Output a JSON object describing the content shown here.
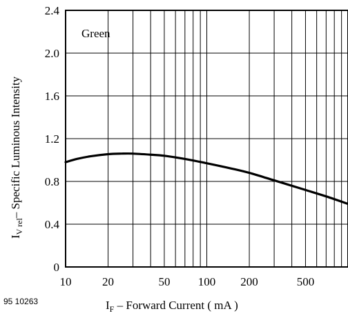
{
  "figure_id": "95 10263",
  "chart_data": {
    "type": "line",
    "title": "",
    "xscale": "log",
    "xlim": [
      10,
      1000
    ],
    "ylim": [
      0,
      2.4
    ],
    "xticks": [
      10,
      20,
      50,
      100,
      200,
      500
    ],
    "xtick_labels": [
      "10",
      "20",
      "50",
      "100",
      "200",
      "500"
    ],
    "yticks": [
      0,
      0.4,
      0.8,
      1.2,
      1.6,
      2.0,
      2.4
    ],
    "ytick_labels": [
      "0",
      "0.4",
      "0.8",
      "1.2",
      "1.6",
      "2.0",
      "2.4"
    ],
    "xlabel": {
      "main": "I",
      "sub": "F",
      "rest": " – Forward Current ( mA )"
    },
    "ylabel": {
      "main": "I",
      "sub": "V rel",
      "rest": "– Specific Luminous Intensity"
    },
    "grid": true,
    "legend_label": "Green",
    "series": [
      {
        "name": "Green",
        "color": "#000000",
        "x": [
          10,
          12,
          15,
          20,
          25,
          30,
          40,
          50,
          70,
          100,
          150,
          200,
          300,
          500,
          700,
          1000
        ],
        "y": [
          0.98,
          1.01,
          1.035,
          1.055,
          1.06,
          1.06,
          1.05,
          1.04,
          1.01,
          0.97,
          0.92,
          0.88,
          0.81,
          0.72,
          0.66,
          0.59
        ]
      }
    ]
  }
}
